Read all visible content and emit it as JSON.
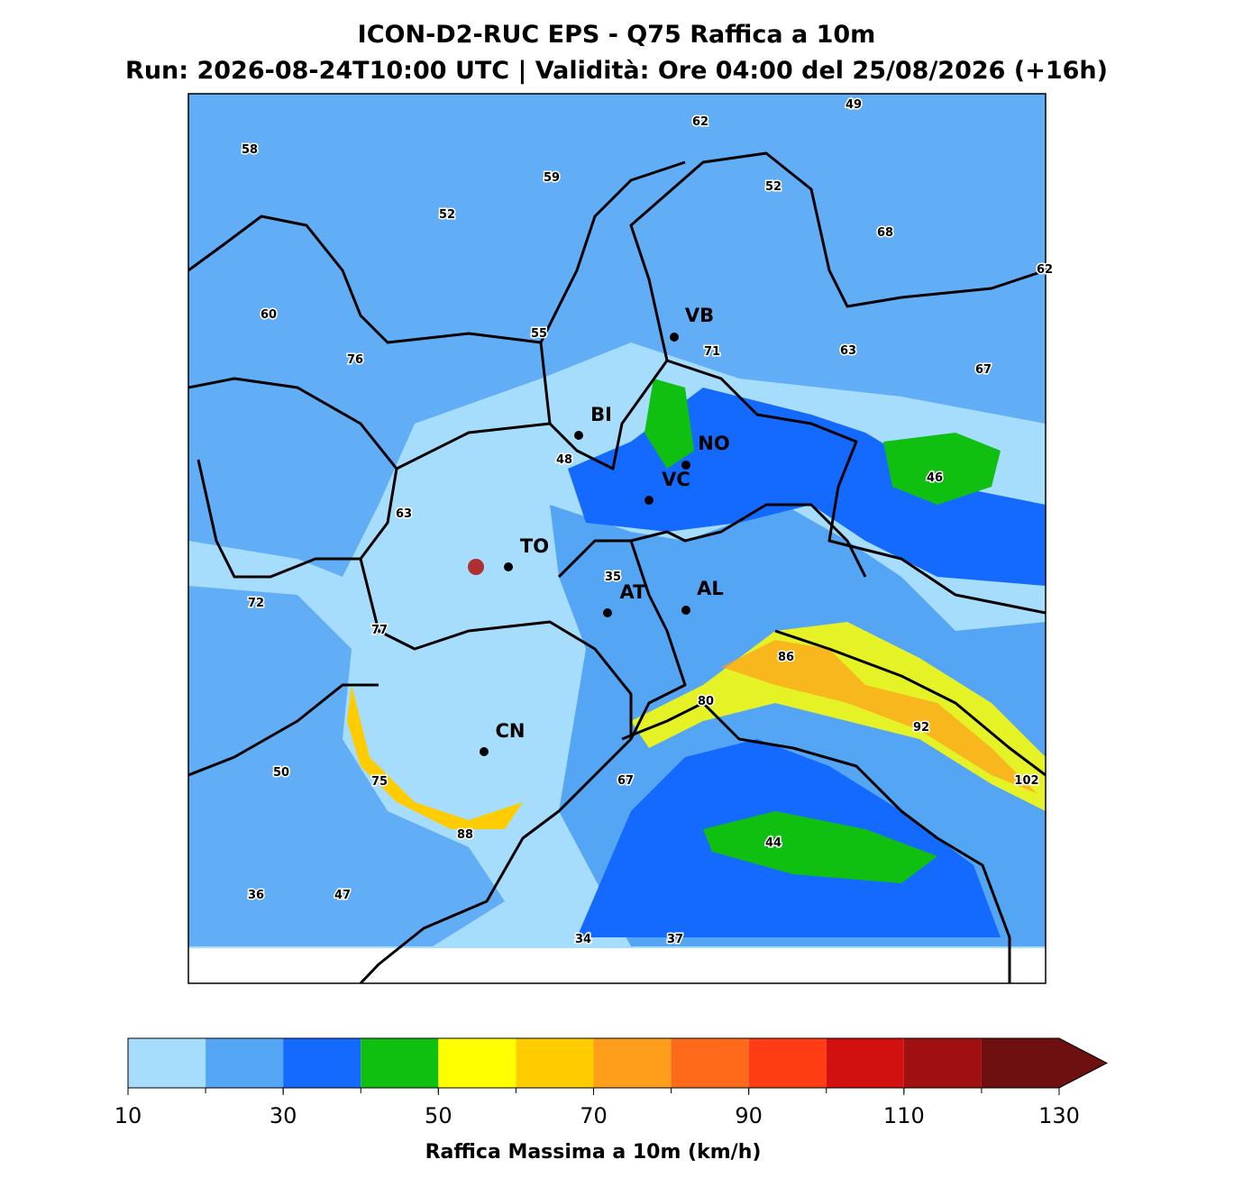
{
  "header": {
    "title": "ICON-D2-RUC EPS - Q75 Raffica a 10m",
    "subtitle": "Run: 2026-08-24T10:00 UTC | Validità: Ore 04:00 del 25/08/2026 (+16h)"
  },
  "map": {
    "cities": [
      "VB",
      "BI",
      "NO",
      "VC",
      "TO",
      "AT",
      "AL",
      "CN"
    ],
    "value_labels": [
      58,
      62,
      49,
      59,
      52,
      52,
      68,
      62,
      60,
      55,
      71,
      63,
      76,
      67,
      48,
      46,
      63,
      35,
      72,
      77,
      86,
      80,
      92,
      50,
      75,
      67,
      102,
      88,
      44,
      36,
      47,
      34,
      37
    ]
  },
  "colorbar": {
    "bins": [
      10,
      20,
      30,
      40,
      50,
      60,
      70,
      80,
      90,
      100,
      110,
      120,
      130
    ],
    "colors": [
      "#a6dcfc",
      "#55a5f5",
      "#1469fe",
      "#10c010",
      "#ffff00",
      "#ffcc00",
      "#ff9e1a",
      "#ff6a1a",
      "#ff3c14",
      "#d21010",
      "#a01010",
      "#6e1010"
    ],
    "ticks": [
      10,
      30,
      50,
      70,
      90,
      110,
      130
    ],
    "label": "Raffica Massima a 10m (km/h)"
  }
}
